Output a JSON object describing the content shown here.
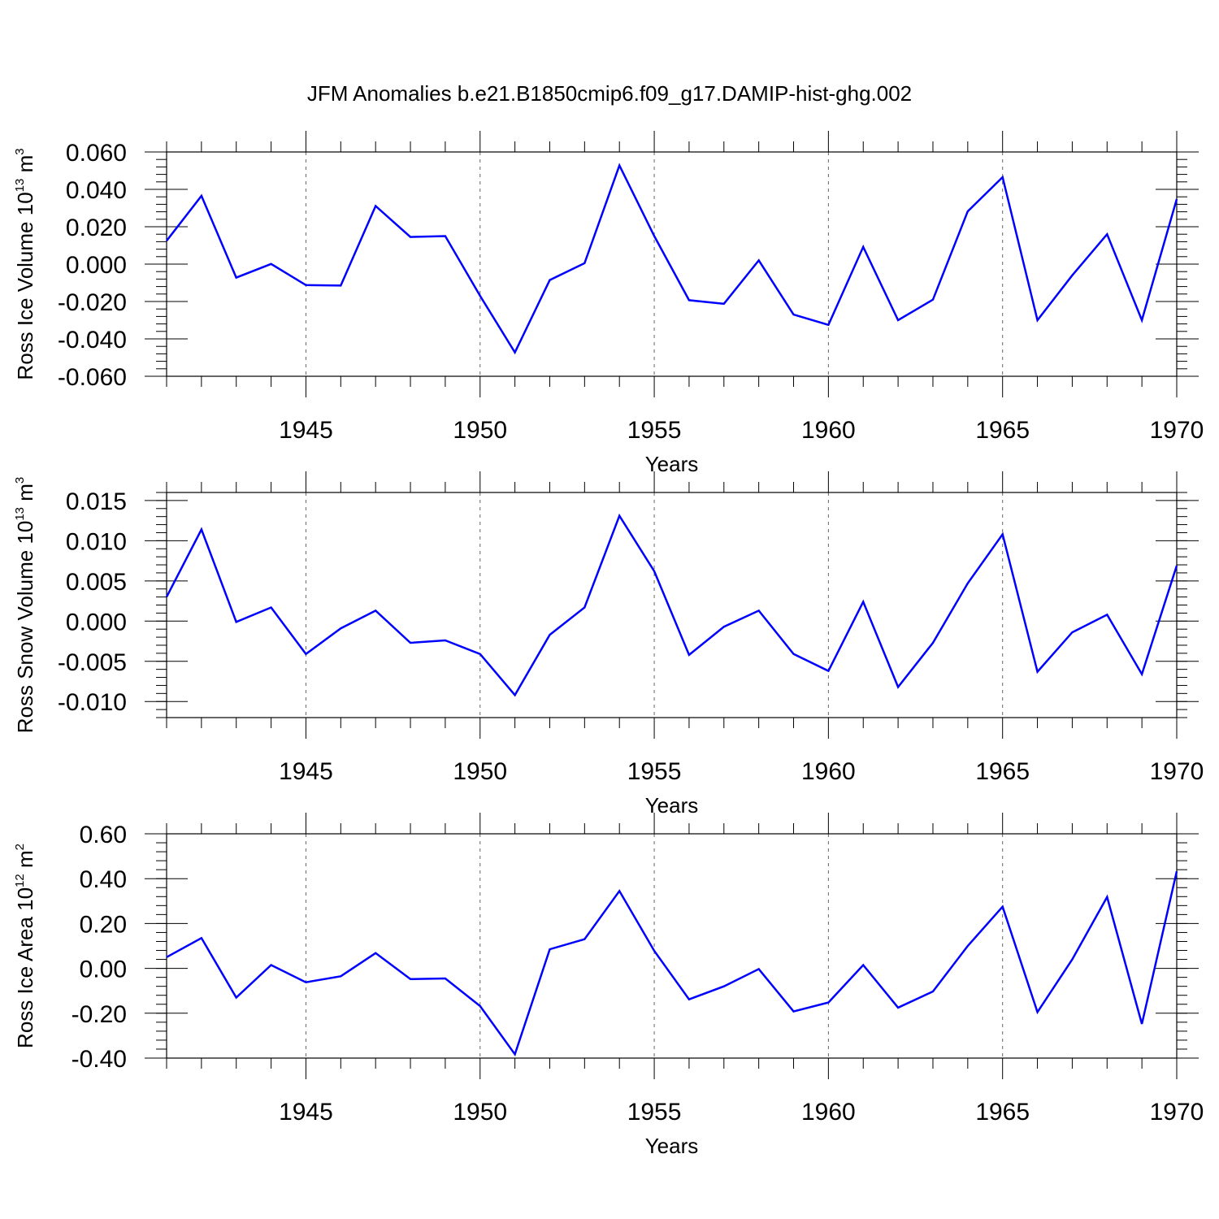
{
  "chart_data": {
    "title": "JFM Anomalies b.e21.B1850cmip6.f09_g17.DAMIP-hist-ghg.002",
    "series_color": "#0000ff",
    "x": [
      1941,
      1942,
      1943,
      1944,
      1945,
      1946,
      1947,
      1948,
      1949,
      1950,
      1951,
      1952,
      1953,
      1954,
      1955,
      1956,
      1957,
      1958,
      1959,
      1960,
      1961,
      1962,
      1963,
      1964,
      1965,
      1966,
      1967,
      1968,
      1969,
      1970
    ],
    "panels": [
      {
        "type": "line",
        "ylabel": {
          "text": "Ross Ice Volume 10",
          "exp": "13",
          "unit": " m",
          "unit_exp": "3"
        },
        "xlabel": "Years",
        "xlim": [
          1941,
          1970
        ],
        "ylim": [
          -0.06,
          0.06
        ],
        "x_ticks": [
          "1945",
          "1950",
          "1955",
          "1960",
          "1965",
          "1970"
        ],
        "y_ticks": [
          {
            "value": -0.06,
            "label": "-0.060"
          },
          {
            "value": -0.04,
            "label": "-0.040"
          },
          {
            "value": -0.02,
            "label": "-0.020"
          },
          {
            "value": 0.0,
            "label": "0.000"
          },
          {
            "value": 0.02,
            "label": "0.020"
          },
          {
            "value": 0.04,
            "label": "0.040"
          },
          {
            "value": 0.06,
            "label": "0.060"
          }
        ],
        "values": [
          0.0125,
          0.0365,
          -0.0072,
          0.0001,
          -0.0112,
          -0.0115,
          0.0311,
          0.0145,
          0.015,
          -0.017,
          -0.0472,
          -0.0085,
          0.0005,
          0.0528,
          0.015,
          -0.0193,
          -0.0212,
          0.002,
          -0.027,
          -0.0325,
          0.0092,
          -0.03,
          -0.019,
          0.0282,
          0.0465,
          -0.03,
          -0.006,
          0.016,
          -0.03,
          0.0348
        ]
      },
      {
        "type": "line",
        "ylabel": {
          "text": "Ross Snow Volume 10",
          "exp": "13",
          "unit": " m",
          "unit_exp": "3"
        },
        "xlabel": "Years",
        "xlim": [
          1941,
          1970
        ],
        "ylim": [
          -0.012,
          0.016
        ],
        "x_ticks": [
          "1945",
          "1950",
          "1955",
          "1960",
          "1965",
          "1970"
        ],
        "y_ticks": [
          {
            "value": -0.01,
            "label": "-0.010"
          },
          {
            "value": -0.005,
            "label": "-0.005"
          },
          {
            "value": 0.0,
            "label": "0.000"
          },
          {
            "value": 0.005,
            "label": "0.005"
          },
          {
            "value": 0.01,
            "label": "0.010"
          },
          {
            "value": 0.015,
            "label": "0.015"
          }
        ],
        "values": [
          0.003,
          0.0114,
          -0.0001,
          0.0017,
          -0.0041,
          -0.0009,
          0.0013,
          -0.0027,
          -0.0024,
          -0.0041,
          -0.0092,
          -0.0017,
          0.0017,
          0.0131,
          0.0062,
          -0.0042,
          -0.0007,
          0.0013,
          -0.0041,
          -0.0062,
          0.0024,
          -0.0082,
          -0.0027,
          0.0047,
          0.0108,
          -0.0063,
          -0.0014,
          0.0008,
          -0.0066,
          0.0069
        ]
      },
      {
        "type": "line",
        "ylabel": {
          "text": "Ross Ice Area 10",
          "exp": "12",
          "unit": " m",
          "unit_exp": "2"
        },
        "xlabel": "Years",
        "xlim": [
          1941,
          1970
        ],
        "ylim": [
          -0.4,
          0.6
        ],
        "x_ticks": [
          "1945",
          "1950",
          "1955",
          "1960",
          "1965",
          "1970"
        ],
        "y_ticks": [
          {
            "value": -0.4,
            "label": "-0.40"
          },
          {
            "value": -0.2,
            "label": "-0.20"
          },
          {
            "value": 0.0,
            "label": "0.00"
          },
          {
            "value": 0.2,
            "label": "0.20"
          },
          {
            "value": 0.4,
            "label": "0.40"
          },
          {
            "value": 0.6,
            "label": "0.60"
          }
        ],
        "values": [
          0.05,
          0.135,
          -0.13,
          0.015,
          -0.062,
          -0.035,
          0.068,
          -0.048,
          -0.045,
          -0.168,
          -0.383,
          0.085,
          0.13,
          0.345,
          0.078,
          -0.138,
          -0.08,
          -0.003,
          -0.192,
          -0.152,
          0.015,
          -0.175,
          -0.103,
          0.1,
          0.275,
          -0.195,
          0.04,
          0.318,
          -0.248,
          0.433
        ]
      }
    ]
  }
}
